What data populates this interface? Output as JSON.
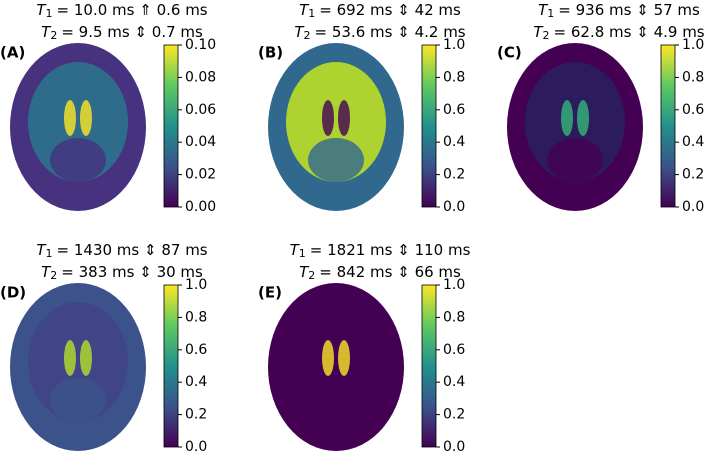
{
  "panels": [
    {
      "label": "(A)",
      "t1": {
        "symbol": "T",
        "sub": "1",
        "text": "= 10.0 ms  ⇑ 0.6 ms"
      },
      "t2": {
        "symbol": "T",
        "sub": "2",
        "text": "= 9.5 ms  ⇕ 0.7 ms"
      },
      "clim": [
        0,
        0.1
      ],
      "ticks": [
        {
          "value": 0,
          "label": "0.00"
        },
        {
          "value": 0.02,
          "label": "0.02"
        },
        {
          "value": 0.04,
          "label": "0.04"
        },
        {
          "value": 0.06,
          "label": "0.06"
        },
        {
          "value": 0.08,
          "label": "0.08"
        },
        {
          "value": 0.1,
          "label": "0.10"
        }
      ]
    },
    {
      "label": "(B)",
      "t1": {
        "symbol": "T",
        "sub": "1",
        "text": "= 692 ms  ⇕ 42 ms"
      },
      "t2": {
        "symbol": "T",
        "sub": "2",
        "text": "= 53.6 ms  ⇕ 4.2 ms"
      },
      "clim": [
        0,
        1
      ],
      "ticks": [
        {
          "value": 0,
          "label": "0.0"
        },
        {
          "value": 0.2,
          "label": "0.2"
        },
        {
          "value": 0.4,
          "label": "0.4"
        },
        {
          "value": 0.6,
          "label": "0.6"
        },
        {
          "value": 0.8,
          "label": "0.8"
        },
        {
          "value": 1,
          "label": "1.0"
        }
      ]
    },
    {
      "label": "(C)",
      "t1": {
        "symbol": "T",
        "sub": "1",
        "text": "= 936 ms  ⇕ 57 ms"
      },
      "t2": {
        "symbol": "T",
        "sub": "2",
        "text": "= 62.8 ms  ⇕ 4.9 ms"
      },
      "clim": [
        0,
        1
      ],
      "ticks": [
        {
          "value": 0,
          "label": "0.0"
        },
        {
          "value": 0.2,
          "label": "0.2"
        },
        {
          "value": 0.4,
          "label": "0.4"
        },
        {
          "value": 0.6,
          "label": "0.6"
        },
        {
          "value": 0.8,
          "label": "0.8"
        },
        {
          "value": 1,
          "label": "1.0"
        }
      ]
    },
    {
      "label": "(D)",
      "t1": {
        "symbol": "T",
        "sub": "1",
        "text": "= 1430 ms  ⇕ 87 ms"
      },
      "t2": {
        "symbol": "T",
        "sub": "2",
        "text": "= 383 ms  ⇕ 30 ms"
      },
      "clim": [
        0,
        1
      ],
      "ticks": [
        {
          "value": 0,
          "label": "0.0"
        },
        {
          "value": 0.2,
          "label": "0.2"
        },
        {
          "value": 0.4,
          "label": "0.4"
        },
        {
          "value": 0.6,
          "label": "0.6"
        },
        {
          "value": 0.8,
          "label": "0.8"
        },
        {
          "value": 1,
          "label": "1.0"
        }
      ]
    },
    {
      "label": "(E)",
      "t1": {
        "symbol": "T",
        "sub": "1",
        "text": "= 1821 ms  ⇕ 110 ms"
      },
      "t2": {
        "symbol": "T",
        "sub": "2",
        "text": "= 842 ms  ⇕ 66 ms"
      },
      "clim": [
        0,
        1
      ],
      "ticks": [
        {
          "value": 0,
          "label": "0.0"
        },
        {
          "value": 0.2,
          "label": "0.2"
        },
        {
          "value": 0.4,
          "label": "0.4"
        },
        {
          "value": 0.6,
          "label": "0.6"
        },
        {
          "value": 0.8,
          "label": "0.8"
        },
        {
          "value": 1,
          "label": "1.0"
        }
      ]
    }
  ]
}
